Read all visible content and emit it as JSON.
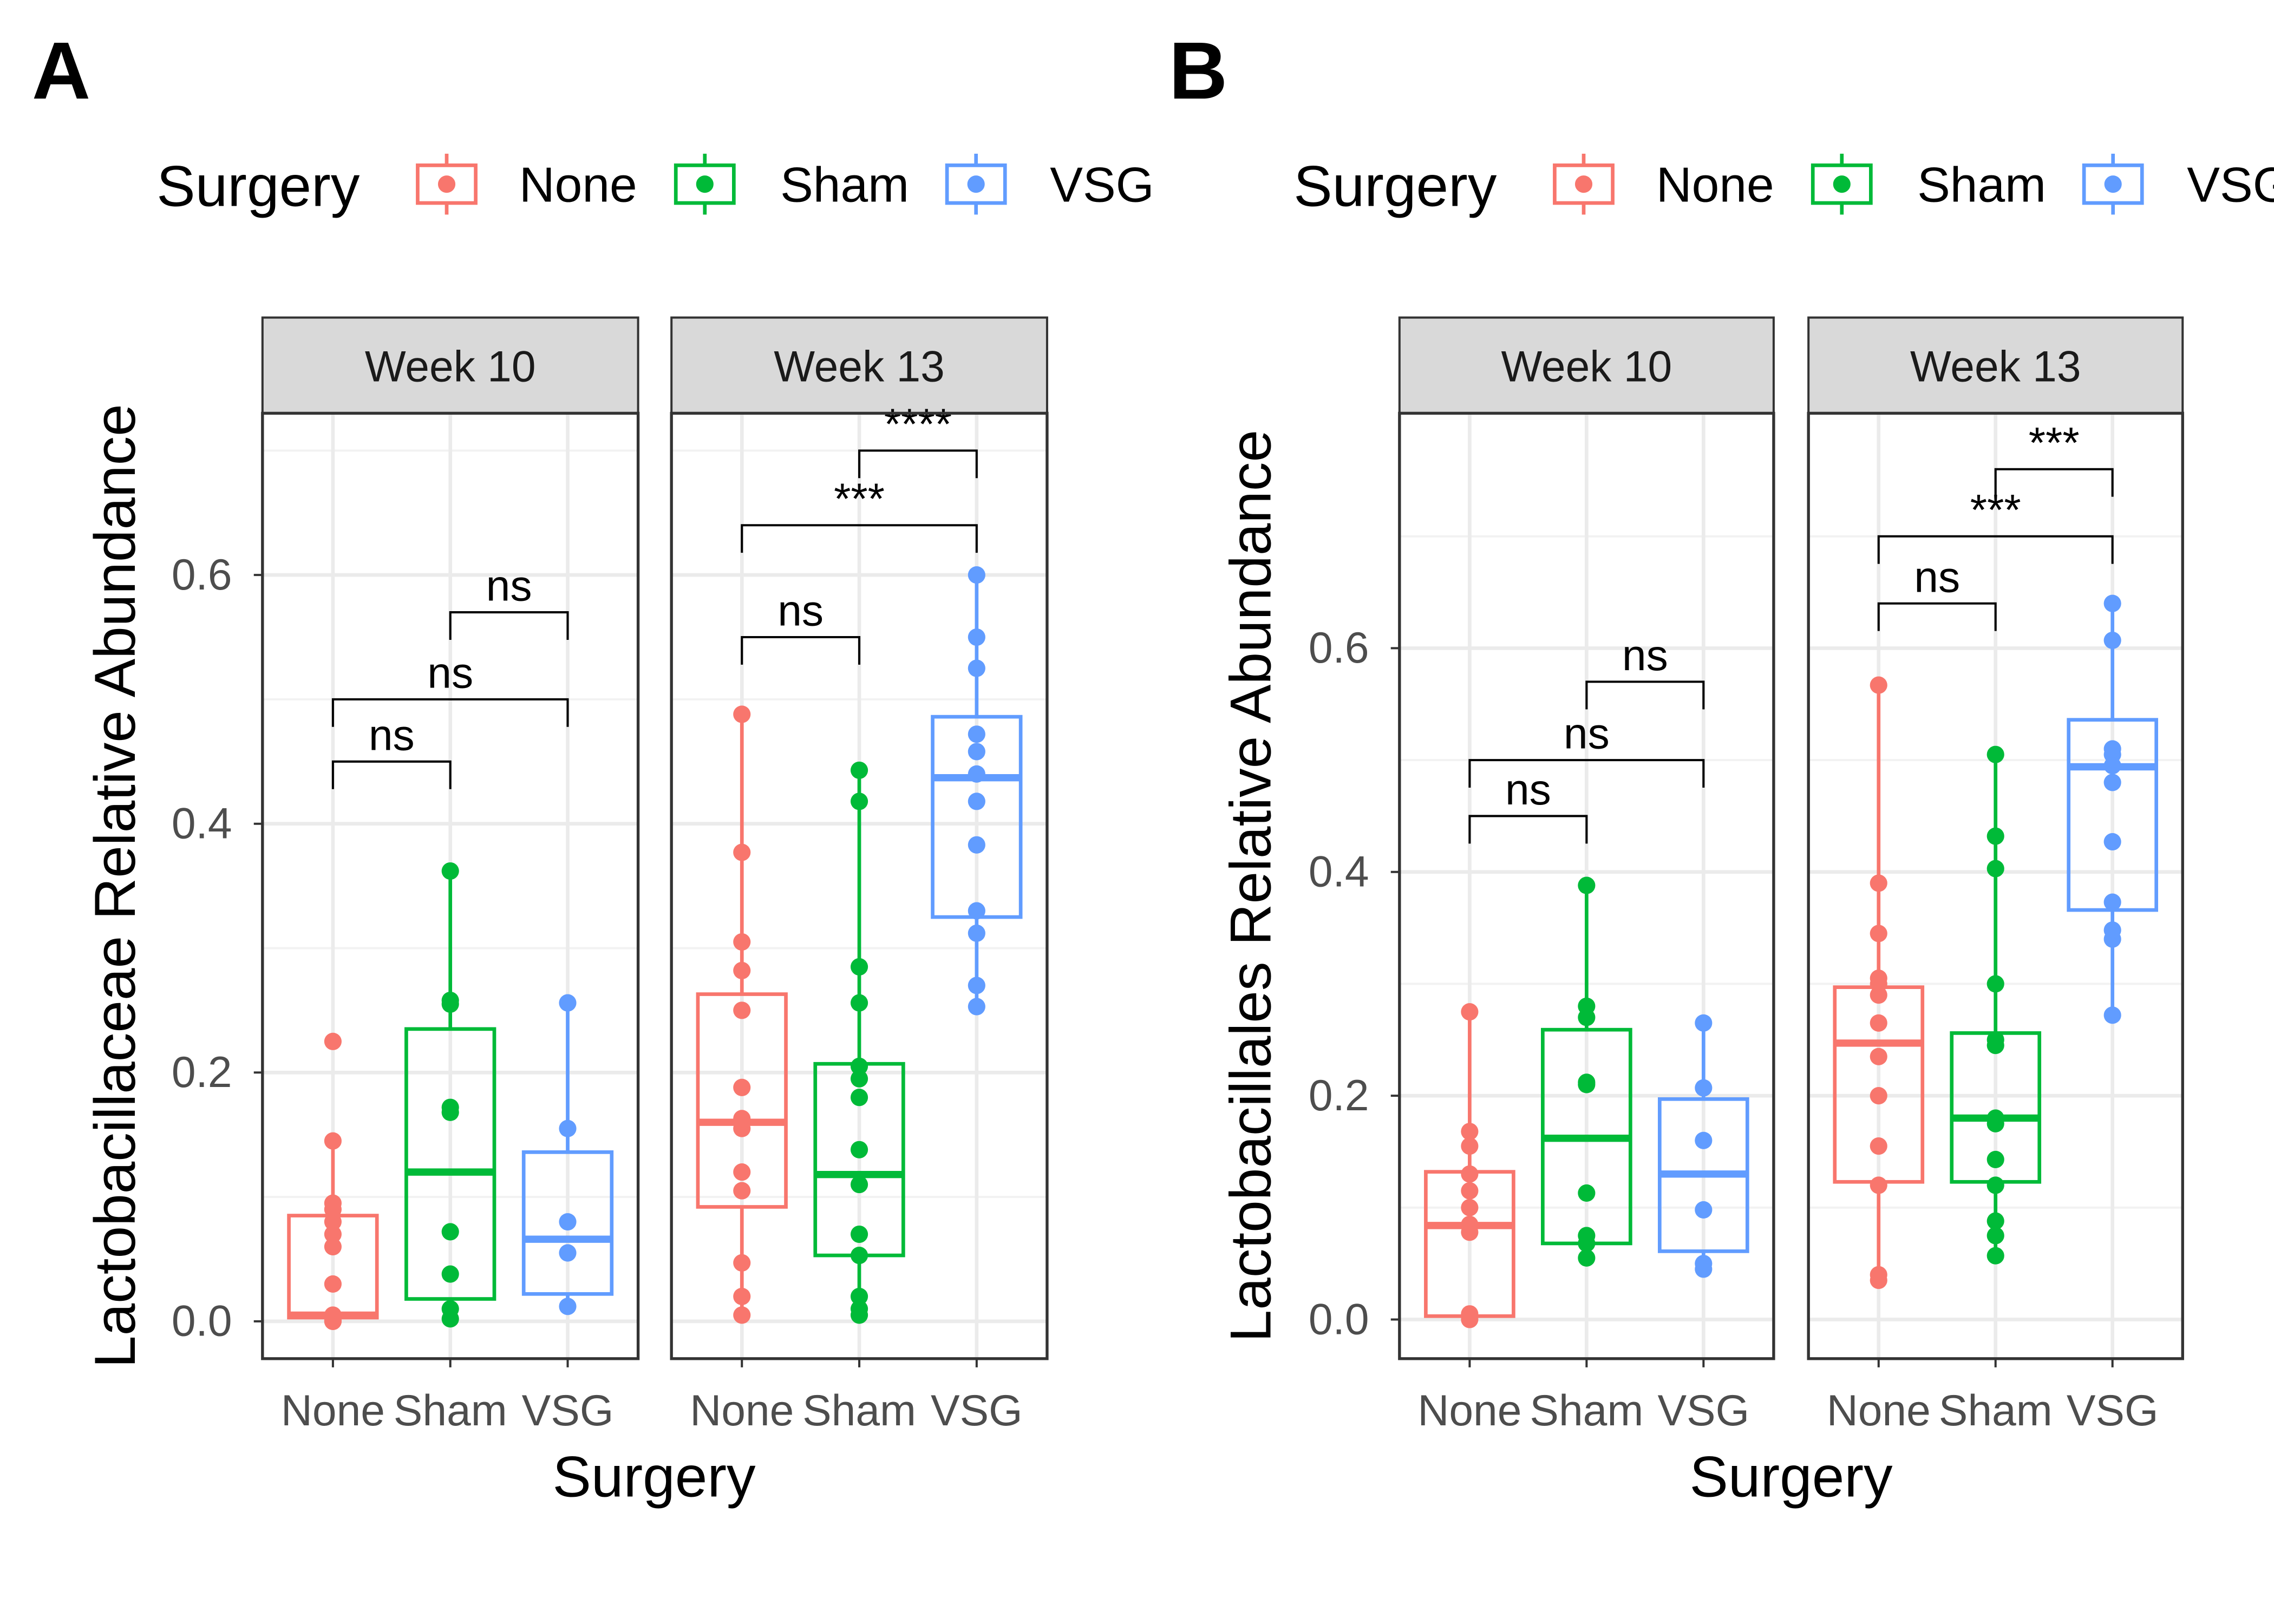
{
  "colors": {
    "None": "#F8766D",
    "Sham": "#00BA38",
    "VSG": "#619CFF"
  },
  "legend": {
    "title": "Surgery",
    "items": [
      "None",
      "Sham",
      "VSG"
    ]
  },
  "chart_data": [
    {
      "type": "box",
      "panel_label": "A",
      "xlabel": "Surgery",
      "ylabel": "Lactobacillaceae Relative Abundance",
      "ylim": [
        -0.03,
        0.73
      ],
      "yticks": [
        0.0,
        0.2,
        0.4,
        0.6
      ],
      "ytick_labels": [
        "0.0",
        "0.2",
        "0.4",
        "0.6"
      ],
      "grid": true,
      "legend_position": "top",
      "categories": [
        "None",
        "Sham",
        "VSG"
      ],
      "facets": [
        {
          "label": "Week 10",
          "groups": [
            {
              "name": "None",
              "box": {
                "q1": 0.003,
                "median": 0.005,
                "q3": 0.085,
                "lower": 0.0,
                "upper": 0.145
              },
              "points": [
                0.0,
                0.0,
                0.001,
                0.003,
                0.005,
                0.03,
                0.06,
                0.07,
                0.08,
                0.09,
                0.095,
                0.145,
                0.225
              ]
            },
            {
              "name": "Sham",
              "box": {
                "q1": 0.018,
                "median": 0.12,
                "q3": 0.235,
                "lower": 0.002,
                "upper": 0.362
              },
              "points": [
                0.002,
                0.01,
                0.038,
                0.072,
                0.168,
                0.172,
                0.255,
                0.258,
                0.362
              ]
            },
            {
              "name": "VSG",
              "box": {
                "q1": 0.022,
                "median": 0.066,
                "q3": 0.136,
                "lower": 0.012,
                "upper": 0.256
              },
              "points": [
                0.012,
                0.055,
                0.08,
                0.155,
                0.256
              ]
            }
          ],
          "comparisons": [
            {
              "from": "None",
              "to": "Sham",
              "label": "ns",
              "y": 0.45
            },
            {
              "from": "None",
              "to": "VSG",
              "label": "ns",
              "y": 0.5
            },
            {
              "from": "Sham",
              "to": "VSG",
              "label": "ns",
              "y": 0.57
            }
          ]
        },
        {
          "label": "Week 13",
          "groups": [
            {
              "name": "None",
              "box": {
                "q1": 0.092,
                "median": 0.16,
                "q3": 0.263,
                "lower": 0.005,
                "upper": 0.488
              },
              "points": [
                0.005,
                0.02,
                0.047,
                0.105,
                0.12,
                0.155,
                0.163,
                0.188,
                0.25,
                0.282,
                0.305,
                0.377,
                0.488
              ]
            },
            {
              "name": "Sham",
              "box": {
                "q1": 0.053,
                "median": 0.118,
                "q3": 0.207,
                "lower": 0.005,
                "upper": 0.443
              },
              "points": [
                0.005,
                0.01,
                0.02,
                0.053,
                0.07,
                0.11,
                0.138,
                0.18,
                0.195,
                0.205,
                0.256,
                0.285,
                0.418,
                0.443
              ]
            },
            {
              "name": "VSG",
              "box": {
                "q1": 0.325,
                "median": 0.437,
                "q3": 0.486,
                "lower": 0.253,
                "upper": 0.6
              },
              "points": [
                0.253,
                0.27,
                0.312,
                0.33,
                0.383,
                0.418,
                0.44,
                0.458,
                0.472,
                0.525,
                0.55,
                0.6
              ]
            }
          ],
          "comparisons": [
            {
              "from": "None",
              "to": "Sham",
              "label": "ns",
              "y": 0.55
            },
            {
              "from": "None",
              "to": "VSG",
              "label": "***",
              "y": 0.64
            },
            {
              "from": "Sham",
              "to": "VSG",
              "label": "****",
              "y": 0.7
            }
          ]
        }
      ]
    },
    {
      "type": "box",
      "panel_label": "B",
      "xlabel": "Surgery",
      "ylabel": "Lactobacillales Relative Abundance",
      "ylim": [
        -0.035,
        0.81
      ],
      "yticks": [
        0.0,
        0.2,
        0.4,
        0.6
      ],
      "ytick_labels": [
        "0.0",
        "0.2",
        "0.4",
        "0.6"
      ],
      "grid": true,
      "legend_position": "top",
      "categories": [
        "None",
        "Sham",
        "VSG"
      ],
      "facets": [
        {
          "label": "Week 10",
          "groups": [
            {
              "name": "None",
              "box": {
                "q1": 0.003,
                "median": 0.084,
                "q3": 0.132,
                "lower": 0.0,
                "upper": 0.275
              },
              "points": [
                0.0,
                0.005,
                0.078,
                0.085,
                0.1,
                0.115,
                0.13,
                0.155,
                0.168,
                0.275
              ]
            },
            {
              "name": "Sham",
              "box": {
                "q1": 0.068,
                "median": 0.162,
                "q3": 0.259,
                "lower": 0.055,
                "upper": 0.388
              },
              "points": [
                0.055,
                0.068,
                0.075,
                0.113,
                0.21,
                0.212,
                0.27,
                0.28,
                0.388
              ]
            },
            {
              "name": "VSG",
              "box": {
                "q1": 0.061,
                "median": 0.13,
                "q3": 0.197,
                "lower": 0.045,
                "upper": 0.265
              },
              "points": [
                0.045,
                0.05,
                0.098,
                0.16,
                0.207,
                0.265
              ]
            }
          ],
          "comparisons": [
            {
              "from": "None",
              "to": "Sham",
              "label": "ns",
              "y": 0.45
            },
            {
              "from": "None",
              "to": "VSG",
              "label": "ns",
              "y": 0.5
            },
            {
              "from": "Sham",
              "to": "VSG",
              "label": "ns",
              "y": 0.57
            }
          ]
        },
        {
          "label": "Week 13",
          "groups": [
            {
              "name": "None",
              "box": {
                "q1": 0.123,
                "median": 0.247,
                "q3": 0.297,
                "lower": 0.035,
                "upper": 0.567
              },
              "points": [
                0.035,
                0.04,
                0.12,
                0.155,
                0.2,
                0.235,
                0.265,
                0.29,
                0.3,
                0.305,
                0.345,
                0.39,
                0.567
              ]
            },
            {
              "name": "Sham",
              "box": {
                "q1": 0.123,
                "median": 0.18,
                "q3": 0.256,
                "lower": 0.057,
                "upper": 0.505
              },
              "points": [
                0.057,
                0.075,
                0.088,
                0.12,
                0.143,
                0.175,
                0.18,
                0.245,
                0.25,
                0.3,
                0.403,
                0.432,
                0.505
              ]
            },
            {
              "name": "VSG",
              "box": {
                "q1": 0.366,
                "median": 0.494,
                "q3": 0.536,
                "lower": 0.272,
                "upper": 0.64
              },
              "points": [
                0.272,
                0.34,
                0.348,
                0.373,
                0.427,
                0.48,
                0.495,
                0.505,
                0.51,
                0.607,
                0.64
              ]
            }
          ],
          "comparisons": [
            {
              "from": "None",
              "to": "Sham",
              "label": "ns",
              "y": 0.64
            },
            {
              "from": "None",
              "to": "VSG",
              "label": "***",
              "y": 0.7
            },
            {
              "from": "Sham",
              "to": "VSG",
              "label": "***",
              "y": 0.76
            }
          ]
        }
      ]
    }
  ]
}
